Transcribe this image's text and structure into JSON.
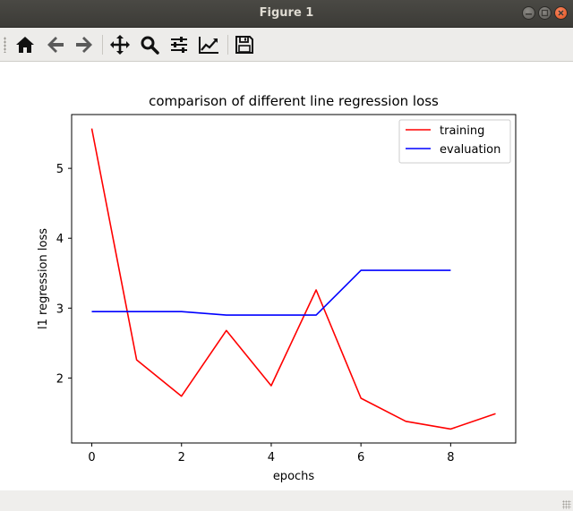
{
  "window": {
    "title": "Figure 1"
  },
  "toolbar": {
    "buttons": [
      {
        "name": "home-button",
        "icon": "home-icon"
      },
      {
        "name": "back-button",
        "icon": "arrow-left-icon"
      },
      {
        "name": "forward-button",
        "icon": "arrow-right-icon"
      },
      {
        "name": "pan-button",
        "icon": "move-icon"
      },
      {
        "name": "zoom-button",
        "icon": "magnifier-icon"
      },
      {
        "name": "subplots-button",
        "icon": "sliders-icon"
      },
      {
        "name": "edit-axis-button",
        "icon": "line-chart-icon"
      },
      {
        "name": "save-button",
        "icon": "floppy-disk-icon"
      }
    ]
  },
  "chart_data": {
    "type": "line",
    "title": "comparison of different line regression loss",
    "xlabel": "epochs",
    "ylabel": "l1 regression loss",
    "xlim": [
      -0.45,
      9.45
    ],
    "ylim": [
      1.07,
      5.77
    ],
    "xticks": [
      0,
      2,
      4,
      6,
      8
    ],
    "yticks": [
      2,
      3,
      4,
      5
    ],
    "legend_position": "top-right",
    "grid": false,
    "series": [
      {
        "name": "training",
        "color": "#ff0000",
        "x": [
          0,
          1,
          2,
          3,
          4,
          5,
          6,
          7,
          8,
          9
        ],
        "y": [
          5.57,
          2.26,
          1.74,
          2.68,
          1.89,
          3.26,
          1.71,
          1.38,
          1.27,
          1.49
        ]
      },
      {
        "name": "evaluation",
        "color": "#0000ff",
        "x": [
          0,
          1,
          2,
          3,
          4,
          5,
          6,
          7,
          8
        ],
        "y": [
          2.95,
          2.95,
          2.95,
          2.9,
          2.9,
          2.9,
          3.54,
          3.54,
          3.54
        ]
      }
    ]
  }
}
